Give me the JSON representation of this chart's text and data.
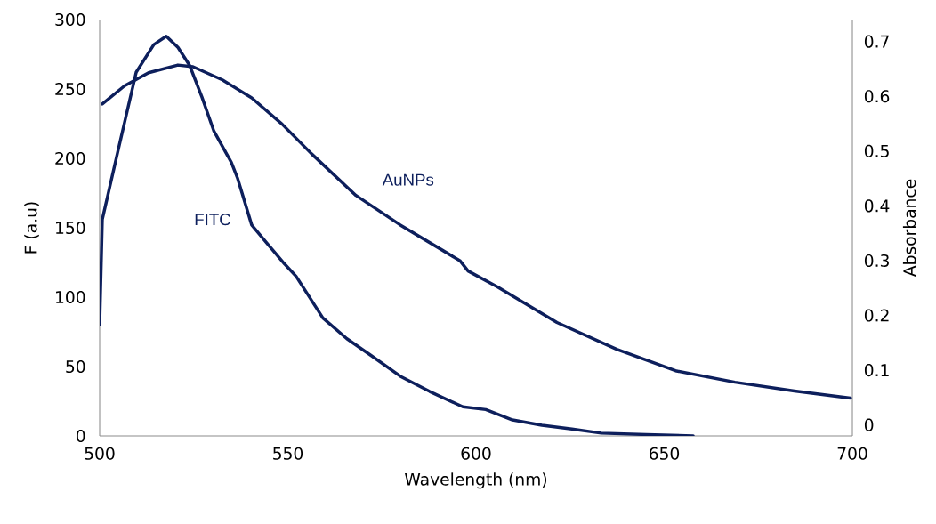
{
  "chart_data": {
    "type": "line",
    "xlabel": "Wavelength (nm)",
    "ylabel": "F (a.u)",
    "y2label": "Absorbance",
    "xlim": [
      500,
      700
    ],
    "xticks": [
      500,
      550,
      600,
      650,
      700
    ],
    "ylim": [
      0,
      300
    ],
    "yticks": [
      0,
      50,
      100,
      150,
      200,
      250,
      300
    ],
    "y2lim": [
      -0.02,
      0.74
    ],
    "y2ticks": [
      0,
      0.1,
      0.2,
      0.3,
      0.4,
      0.5,
      0.6,
      0.7
    ],
    "marker": "none",
    "line_style": "solid",
    "grid": false,
    "series": [
      {
        "name": "FITC",
        "color": "#0d1f5c",
        "x": [
          500,
          500.7,
          505,
          509.7,
          514.4,
          517.7,
          520.8,
          523.9,
          527.2,
          530.3,
          535,
          536.6,
          540.4,
          544.4,
          549.1,
          552.2,
          559.3,
          565.7,
          572.1,
          579.9,
          587.7,
          596.5,
          602.6,
          609.7,
          617.5,
          625.5,
          633.3,
          645.2,
          657.7
        ],
        "values": [
          80,
          156,
          207,
          262,
          282,
          288,
          280,
          267,
          244,
          220,
          197,
          186,
          152,
          139,
          124,
          115,
          85,
          70,
          58,
          43,
          32,
          21,
          19,
          11.5,
          7.7,
          5,
          2,
          1,
          0
        ]
      },
      {
        "name": "AuNPs",
        "color": "#0d1f5c",
        "axis": "y2",
        "x": [
          500.7,
          506.6,
          513,
          520.8,
          524.8,
          532.6,
          540.4,
          548.5,
          556.3,
          568.1,
          579.9,
          595.7,
          597.9,
          605.7,
          621.5,
          637.4,
          653,
          668.8,
          684.6,
          699.5
        ],
        "values": [
          0.586,
          0.619,
          0.643,
          0.657,
          0.654,
          0.63,
          0.597,
          0.549,
          0.495,
          0.419,
          0.365,
          0.3,
          0.281,
          0.252,
          0.187,
          0.138,
          0.099,
          0.078,
          0.062,
          0.049
        ]
      }
    ]
  }
}
